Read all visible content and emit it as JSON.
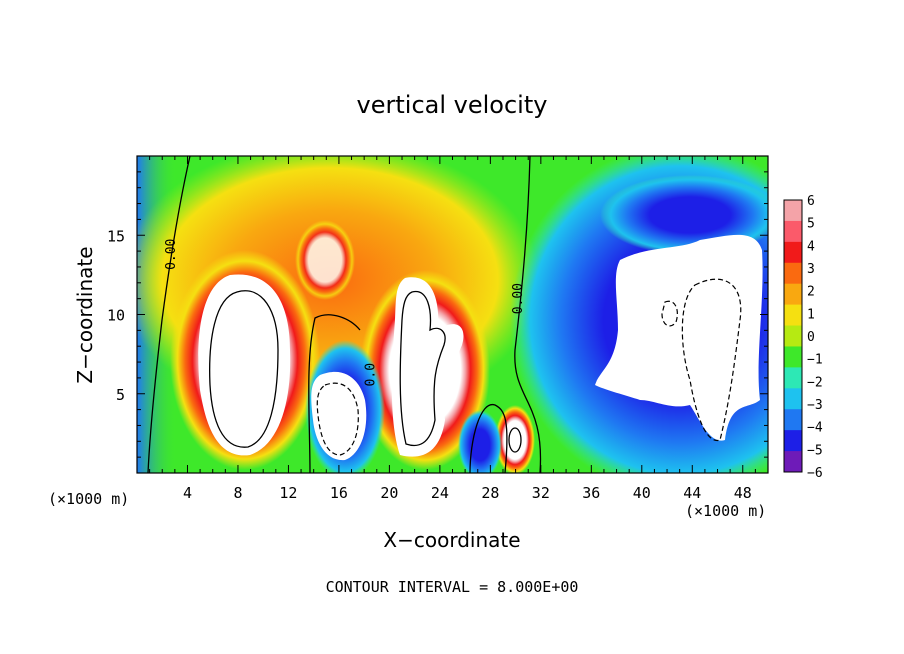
{
  "chart_data": {
    "type": "heatmap",
    "title": "vertical velocity",
    "xlabel": "X−coordinate",
    "ylabel": "Z−coordinate",
    "x_unit_left": "(×1000 m)",
    "x_unit_right": "(×1000 m)",
    "footer": "CONTOUR INTERVAL = 8.000E+00",
    "xlim": [
      0,
      50
    ],
    "ylim": [
      0,
      20
    ],
    "x_ticks": [
      4,
      8,
      12,
      16,
      20,
      24,
      28,
      32,
      36,
      40,
      44,
      48
    ],
    "x_tick_labels": [
      "4",
      "8",
      "12",
      "16",
      "20",
      "24",
      "28",
      "32",
      "36",
      "40",
      "44",
      "48"
    ],
    "y_ticks": [
      5,
      10,
      15
    ],
    "y_tick_labels": [
      "5",
      "10",
      "15"
    ],
    "contour_labels": [
      {
        "text": "0.00",
        "x": 3.0,
        "z": 13.8
      },
      {
        "text": "0.00",
        "x": 30.5,
        "z": 11.0
      },
      {
        "text": "0.0",
        "x": 18.8,
        "z": 6.2
      }
    ],
    "colorbar": {
      "levels": [
        6,
        5,
        4,
        3,
        2,
        1,
        0,
        -1,
        -2,
        -3,
        -4,
        -5,
        -6
      ],
      "labels": [
        "6",
        "5",
        "4",
        "3",
        "2",
        "1",
        "0",
        "−1",
        "−2",
        "−3",
        "−4",
        "−5",
        "−6"
      ],
      "colors": [
        "#f4a3a8",
        "#fb5a6a",
        "#f11a1a",
        "#fa6a10",
        "#f9a810",
        "#f5e011",
        "#b6ea12",
        "#3ee82a",
        "#2de8b5",
        "#1ec2ef",
        "#1f78f2",
        "#1d1fe7",
        "#6e1bb8"
      ]
    },
    "features": [
      {
        "kind": "updraft",
        "x": 9.0,
        "z": 7.0,
        "value_gt": 6
      },
      {
        "kind": "updraft",
        "x": 22.5,
        "z": 7.0,
        "value_gt": 6
      },
      {
        "kind": "updraft",
        "x": 30.0,
        "z": 2.0,
        "value_gt": 6
      },
      {
        "kind": "downdraft",
        "x": 16.0,
        "z": 4.0,
        "value_lt": -6
      },
      {
        "kind": "downdraft",
        "x": 43.5,
        "z": 9.0,
        "value_lt": -6
      }
    ]
  }
}
